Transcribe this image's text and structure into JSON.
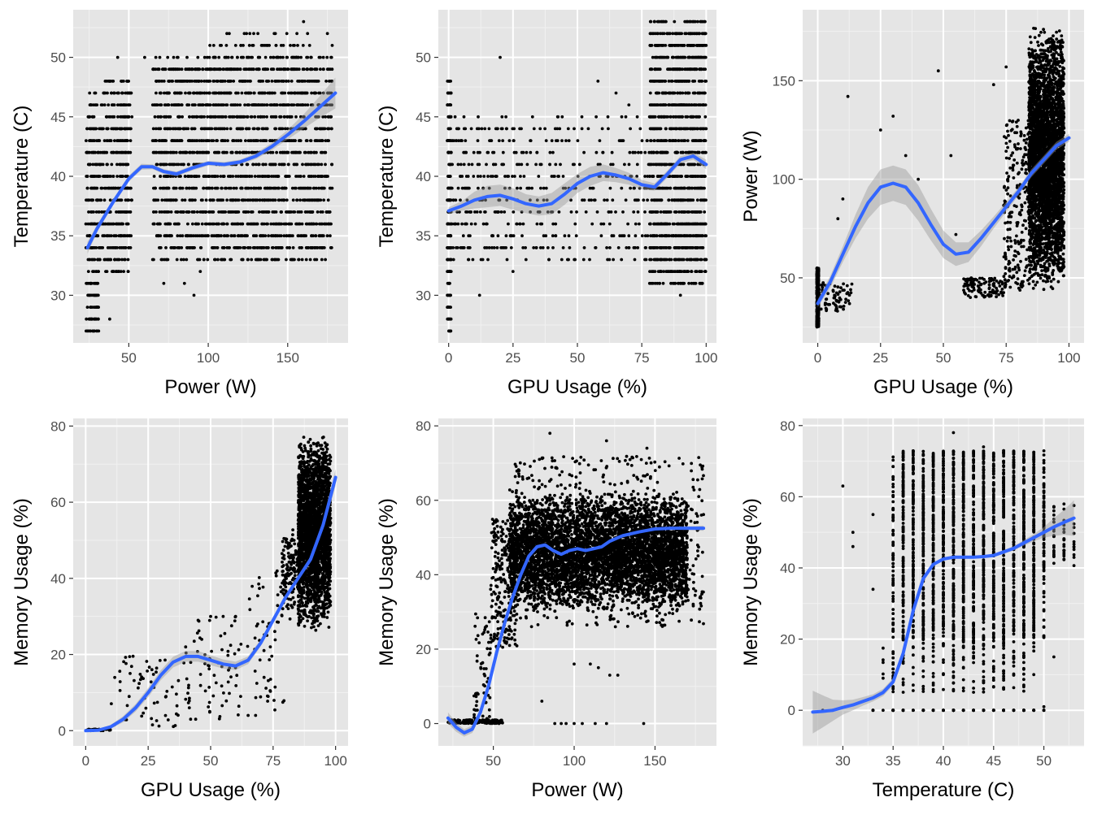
{
  "colors": {
    "panel_background": "#e5e5e5",
    "grid_major": "#ffffff",
    "grid_minor": "#f1f1f1",
    "points": "#000000",
    "smooth_line": "#3366ff",
    "confidence_band": "#999999",
    "tick_text": "#4d4d4d"
  },
  "chart_data": [
    {
      "type": "scatter",
      "xlabel": "Power (W)",
      "ylabel": "Temperature (C)",
      "xlim": [
        15,
        188
      ],
      "ylim": [
        26,
        54
      ],
      "xticks": [
        50,
        100,
        150
      ],
      "yticks": [
        30,
        35,
        40,
        45,
        50
      ],
      "smooth": {
        "x": [
          24,
          30,
          40,
          50,
          58,
          65,
          72,
          80,
          90,
          100,
          110,
          120,
          130,
          140,
          150,
          160,
          170,
          180
        ],
        "y": [
          34,
          35.6,
          37.8,
          39.8,
          40.8,
          40.8,
          40.4,
          40.2,
          40.7,
          41.1,
          41.0,
          41.2,
          41.7,
          42.5,
          43.5,
          44.6,
          45.8,
          47
        ],
        "band": [
          0.5,
          0.3,
          0.25,
          0.25,
          0.25,
          0.2,
          0.2,
          0.2,
          0.2,
          0.2,
          0.2,
          0.2,
          0.25,
          0.3,
          0.4,
          0.6,
          0.9,
          1.3
        ]
      },
      "clouds": [
        {
          "kind": "stripes",
          "x": [
            23,
            31
          ],
          "y": [
            27,
            47
          ],
          "n": 260,
          "conc": 1
        },
        {
          "kind": "stripes",
          "x": [
            31,
            50
          ],
          "y": [
            32,
            48
          ],
          "n": 320,
          "conc": 1
        },
        {
          "kind": "stripes",
          "x": [
            44,
            52
          ],
          "y": [
            34,
            48
          ],
          "n": 120,
          "conc": 1
        },
        {
          "kind": "stripes",
          "x": [
            65,
            178
          ],
          "y": [
            33,
            50
          ],
          "n": 2200,
          "conc": 1
        },
        {
          "kind": "stripes",
          "x": [
            100,
            165
          ],
          "y": [
            49,
            52
          ],
          "n": 90,
          "conc": 1
        }
      ],
      "points": [
        [
          24,
          27
        ],
        [
          25,
          28
        ],
        [
          38,
          28
        ],
        [
          43,
          50
        ],
        [
          60,
          50
        ],
        [
          65,
          33
        ],
        [
          72,
          31
        ],
        [
          85,
          31
        ],
        [
          91,
          30
        ],
        [
          95,
          32
        ],
        [
          110,
          33
        ],
        [
          130,
          33
        ],
        [
          160,
          53
        ],
        [
          175,
          52
        ],
        [
          178,
          51
        ]
      ]
    },
    {
      "type": "scatter",
      "xlabel": "GPU Usage (%)",
      "ylabel": "Temperature (C)",
      "xlim": [
        -4,
        104
      ],
      "ylim": [
        26,
        54
      ],
      "xticks": [
        0,
        25,
        50,
        75,
        100
      ],
      "yticks": [
        30,
        35,
        40,
        45,
        50
      ],
      "smooth": {
        "x": [
          0,
          5,
          10,
          15,
          20,
          25,
          30,
          35,
          40,
          45,
          50,
          55,
          60,
          65,
          70,
          75,
          80,
          85,
          90,
          95,
          100
        ],
        "y": [
          37.1,
          37.5,
          38.0,
          38.3,
          38.4,
          38.1,
          37.7,
          37.5,
          37.7,
          38.5,
          39.4,
          40.0,
          40.3,
          40.1,
          39.8,
          39.3,
          39.1,
          40.2,
          41.4,
          41.7,
          41.0
        ],
        "band": [
          0.3,
          0.4,
          0.7,
          0.9,
          0.9,
          0.9,
          0.8,
          0.8,
          0.9,
          0.9,
          0.8,
          0.8,
          0.7,
          0.6,
          0.5,
          0.4,
          0.3,
          0.3,
          0.3,
          0.3,
          0.4
        ]
      },
      "clouds": [
        {
          "kind": "stripes",
          "x": [
            -0.5,
            1
          ],
          "y": [
            27,
            48
          ],
          "n": 220,
          "conc": 1
        },
        {
          "kind": "stripes",
          "x": [
            1,
            28
          ],
          "y": [
            33,
            45
          ],
          "n": 220,
          "conc": 1
        },
        {
          "kind": "stripes",
          "x": [
            28,
            80
          ],
          "y": [
            33,
            45
          ],
          "n": 260,
          "conc": 1
        },
        {
          "kind": "stripes",
          "x": [
            78,
            100
          ],
          "y": [
            31,
            53
          ],
          "n": 1400,
          "conc": 1
        }
      ],
      "points": [
        [
          20,
          50
        ],
        [
          12,
          30
        ],
        [
          25,
          32
        ],
        [
          33,
          34
        ],
        [
          66,
          34
        ],
        [
          58,
          48
        ],
        [
          65,
          47
        ],
        [
          70,
          46
        ],
        [
          90,
          30
        ]
      ]
    },
    {
      "type": "scatter",
      "xlabel": "GPU Usage (%)",
      "ylabel": "Power (W)",
      "xlim": [
        -6,
        106
      ],
      "ylim": [
        17,
        186
      ],
      "xticks": [
        0,
        25,
        50,
        75,
        100
      ],
      "yticks": [
        50,
        100,
        150
      ],
      "smooth": {
        "x": [
          0,
          5,
          10,
          15,
          20,
          25,
          30,
          35,
          40,
          45,
          50,
          55,
          60,
          65,
          70,
          75,
          80,
          85,
          90,
          95,
          100
        ],
        "y": [
          37,
          48,
          62,
          76,
          88,
          96,
          98,
          96,
          88,
          77,
          67,
          62,
          63,
          70,
          78,
          86,
          94,
          103,
          110,
          117,
          121
        ],
        "band": [
          2,
          3,
          4,
          6,
          8,
          9,
          9,
          9,
          9,
          8,
          7,
          6,
          5,
          4,
          3,
          2.5,
          2,
          2,
          2,
          2,
          2
        ]
      },
      "clouds": [
        {
          "kind": "column",
          "x": [
            -0.4,
            0.4
          ],
          "y": [
            25,
            55
          ],
          "n": 500,
          "conc": 1
        },
        {
          "kind": "uniform",
          "x": [
            0,
            14
          ],
          "y": [
            33,
            48
          ],
          "n": 70,
          "conc": 1
        },
        {
          "kind": "uniform",
          "x": [
            58,
            75
          ],
          "y": [
            40,
            50
          ],
          "n": 110,
          "conc": 1
        },
        {
          "kind": "uniform",
          "x": [
            74,
            86
          ],
          "y": [
            42,
            130
          ],
          "n": 260,
          "conc": 1
        },
        {
          "kind": "uniform",
          "x": [
            84,
            98
          ],
          "y": [
            43,
            178
          ],
          "n": 3600,
          "conc": 2
        }
      ],
      "points": [
        [
          12,
          142
        ],
        [
          25,
          125
        ],
        [
          30,
          132
        ],
        [
          35,
          112
        ],
        [
          40,
          100
        ],
        [
          48,
          155
        ],
        [
          53,
          112
        ],
        [
          70,
          148
        ],
        [
          75,
          157
        ],
        [
          55,
          72
        ],
        [
          8,
          80
        ],
        [
          10,
          90
        ]
      ]
    },
    {
      "type": "scatter",
      "xlabel": "GPU Usage (%)",
      "ylabel": "Memory Usage (%)",
      "xlim": [
        -5,
        105
      ],
      "ylim": [
        -4,
        82
      ],
      "xticks": [
        0,
        25,
        50,
        75,
        100
      ],
      "yticks": [
        0,
        20,
        40,
        60,
        80
      ],
      "smooth": {
        "x": [
          0,
          5,
          10,
          15,
          20,
          25,
          30,
          35,
          40,
          45,
          50,
          55,
          60,
          65,
          70,
          75,
          80,
          85,
          90,
          95,
          100
        ],
        "y": [
          0,
          0.1,
          1,
          3,
          6,
          10,
          14.5,
          18,
          19.5,
          19.5,
          18.5,
          17.5,
          17,
          18.5,
          23,
          29,
          35,
          40,
          45,
          54,
          66.5
        ],
        "band": [
          0.3,
          0.3,
          0.5,
          0.8,
          1.0,
          1.2,
          1.3,
          1.4,
          1.4,
          1.4,
          1.3,
          1.2,
          1.1,
          1.0,
          0.9,
          0.8,
          0.7,
          0.7,
          0.8,
          1.2,
          2.2
        ]
      },
      "clouds": [
        {
          "kind": "uniform",
          "x": [
            0,
            10
          ],
          "y": [
            0,
            0.4
          ],
          "n": 40,
          "conc": 1
        },
        {
          "kind": "uniform",
          "x": [
            10,
            40
          ],
          "y": [
            1,
            20
          ],
          "n": 60,
          "conc": 1
        },
        {
          "kind": "uniform",
          "x": [
            40,
            65
          ],
          "y": [
            3,
            30
          ],
          "n": 70,
          "conc": 1
        },
        {
          "kind": "uniform",
          "x": [
            65,
            80
          ],
          "y": [
            5,
            42
          ],
          "n": 50,
          "conc": 1
        },
        {
          "kind": "uniform",
          "x": [
            78,
            86
          ],
          "y": [
            28,
            55
          ],
          "n": 150,
          "conc": 2
        },
        {
          "kind": "uniform",
          "x": [
            85,
            98
          ],
          "y": [
            26,
            78
          ],
          "n": 2500,
          "conc": 2
        }
      ],
      "points": [
        [
          42,
          3
        ],
        [
          44,
          3
        ],
        [
          40,
          22
        ],
        [
          45,
          29
        ],
        [
          50,
          30
        ],
        [
          55,
          30
        ],
        [
          60,
          30
        ],
        [
          65,
          4
        ],
        [
          68,
          4
        ],
        [
          73,
          9
        ],
        [
          62,
          9
        ]
      ]
    },
    {
      "type": "scatter",
      "xlabel": "Power (W)",
      "ylabel": "Memory Usage (%)",
      "xlim": [
        16,
        188
      ],
      "ylim": [
        -6,
        82
      ],
      "xticks": [
        50,
        100,
        150
      ],
      "yticks": [
        0,
        20,
        40,
        60,
        80
      ],
      "smooth": {
        "x": [
          22,
          27,
          32,
          37,
          42,
          47,
          52,
          57,
          62,
          67,
          72,
          77,
          82,
          87,
          92,
          97,
          102,
          107,
          112,
          117,
          122,
          130,
          140,
          150,
          160,
          170,
          180
        ],
        "y": [
          1.5,
          -1,
          -2.5,
          -1.5,
          3,
          10,
          19,
          27,
          34,
          40,
          45,
          47.5,
          48,
          46.5,
          45.5,
          46.5,
          47,
          46.5,
          47,
          47.5,
          49,
          50.5,
          51.5,
          52.3,
          52.5,
          52.5,
          52.5
        ],
        "band": [
          1.5,
          1.2,
          1.0,
          1.0,
          1.0,
          1.0,
          1.0,
          1.0,
          1.0,
          0.8,
          0.7,
          0.5,
          0.4,
          0.3,
          0.3,
          0.3,
          0.3,
          0.3,
          0.3,
          0.3,
          0.3,
          0.3,
          0.3,
          0.3,
          0.4,
          0.5,
          0.7
        ]
      },
      "clouds": [
        {
          "kind": "uniform",
          "x": [
            22,
            56
          ],
          "y": [
            0,
            1
          ],
          "n": 160,
          "conc": 1
        },
        {
          "kind": "uniform",
          "x": [
            38,
            48
          ],
          "y": [
            0,
            30
          ],
          "n": 60,
          "conc": 1
        },
        {
          "kind": "uniform",
          "x": [
            48,
            65
          ],
          "y": [
            20,
            55
          ],
          "n": 260,
          "conc": 1
        },
        {
          "kind": "uniform",
          "x": [
            60,
            170
          ],
          "y": [
            30,
            62
          ],
          "n": 5200,
          "conc": 2
        },
        {
          "kind": "uniform",
          "x": [
            60,
            180
          ],
          "y": [
            26,
            72
          ],
          "n": 600,
          "conc": 1
        }
      ],
      "points": [
        [
          88,
          0
        ],
        [
          92,
          0
        ],
        [
          95,
          0
        ],
        [
          100,
          0
        ],
        [
          105,
          0
        ],
        [
          113,
          0
        ],
        [
          120,
          0
        ],
        [
          143,
          0
        ],
        [
          80,
          6
        ],
        [
          100,
          16
        ],
        [
          110,
          16
        ],
        [
          115,
          15
        ],
        [
          127,
          13
        ],
        [
          122,
          13
        ],
        [
          85,
          78
        ],
        [
          120,
          76
        ],
        [
          145,
          74
        ],
        [
          72,
          66
        ]
      ]
    },
    {
      "type": "scatter",
      "xlabel": "Temperature (C)",
      "ylabel": "Memory Usage (%)",
      "xlim": [
        26,
        54
      ],
      "ylim": [
        -10,
        82
      ],
      "xticks": [
        30,
        35,
        40,
        45,
        50
      ],
      "yticks": [
        0,
        20,
        40,
        60,
        80
      ],
      "smooth": {
        "x": [
          27,
          28,
          29,
          30,
          31,
          32,
          33,
          34,
          35,
          36,
          37,
          38,
          39,
          40,
          41,
          42,
          43,
          44,
          45,
          46,
          47,
          48,
          49,
          50,
          51,
          52,
          53
        ],
        "y": [
          -0.5,
          -0.3,
          0,
          0.8,
          1.5,
          2.5,
          3.5,
          5,
          8,
          16,
          28,
          37,
          41,
          42.5,
          43,
          43,
          43,
          43.2,
          43.5,
          44.5,
          45.5,
          47,
          48.5,
          50,
          51.5,
          52.8,
          54
        ],
        "band": [
          6,
          4.5,
          3,
          2,
          1.5,
          1.2,
          1.0,
          1.0,
          1.0,
          1.0,
          0.8,
          0.6,
          0.5,
          0.4,
          0.4,
          0.4,
          0.4,
          0.4,
          0.4,
          0.5,
          0.6,
          0.8,
          1.0,
          1.5,
          2.5,
          3.5,
          5
        ]
      },
      "clouds": [
        {
          "kind": "columns",
          "x": [
            33,
            50
          ],
          "y": [
            0,
            0
          ],
          "n": 120,
          "conc": 1
        },
        {
          "kind": "columns",
          "x": [
            34,
            49
          ],
          "y": [
            5,
            20
          ],
          "n": 200,
          "conc": 1
        },
        {
          "kind": "columns",
          "x": [
            35,
            50
          ],
          "y": [
            20,
            73
          ],
          "n": 2200,
          "conc": 1
        },
        {
          "kind": "columns",
          "x": [
            48,
            53
          ],
          "y": [
            40,
            58
          ],
          "n": 120,
          "conc": 1
        }
      ],
      "points": [
        [
          30,
          63
        ],
        [
          28,
          0
        ],
        [
          29,
          0
        ],
        [
          31,
          46
        ],
        [
          31,
          50
        ],
        [
          33,
          55
        ],
        [
          33,
          34
        ],
        [
          50,
          1
        ],
        [
          51,
          15
        ],
        [
          41,
          78
        ],
        [
          44,
          74
        ]
      ]
    }
  ]
}
